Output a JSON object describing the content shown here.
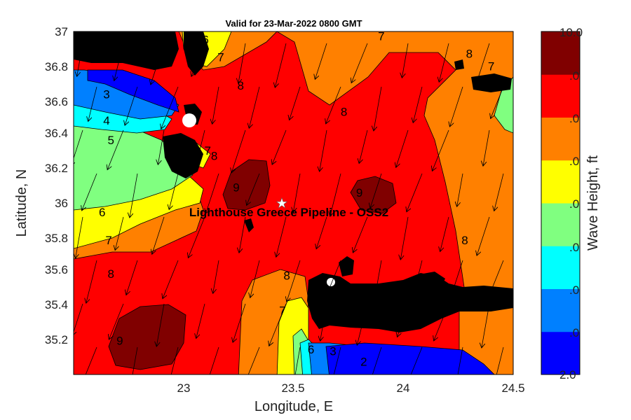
{
  "chart_data": {
    "type": "heatmap",
    "title": "Valid for 23-Mar-2022 0800 GMT",
    "xlabel": "Longitude, E",
    "ylabel": "Latitude, N",
    "xlim": [
      22.5,
      24.5
    ],
    "ylim": [
      35.05,
      37.0
    ],
    "xticks": [
      "23",
      "23.5",
      "24",
      "24.5"
    ],
    "yticks": [
      "37",
      "36.8",
      "36.6",
      "36.4",
      "36.2",
      "36",
      "35.8",
      "35.6",
      "35.4",
      "35.2"
    ],
    "colorbar": {
      "label": "Wave Height, ft",
      "min": 2.0,
      "max": 10.0,
      "tick_labels": [
        ".0",
        ".0",
        ".0",
        ".0",
        ".0",
        ".0",
        ".0"
      ],
      "top_label": "10.0",
      "bottom_label": "2.0",
      "levels": [
        {
          "range": [
            2,
            3
          ],
          "color": "#0000ff"
        },
        {
          "range": [
            3,
            4
          ],
          "color": "#0080ff"
        },
        {
          "range": [
            4,
            5
          ],
          "color": "#00ffff"
        },
        {
          "range": [
            5,
            6
          ],
          "color": "#80ff80"
        },
        {
          "range": [
            6,
            7
          ],
          "color": "#ffff00"
        },
        {
          "range": [
            7,
            8
          ],
          "color": "#ff8000"
        },
        {
          "range": [
            8,
            9
          ],
          "color": "#ff0000"
        },
        {
          "range": [
            9,
            10
          ],
          "color": "#800000"
        }
      ]
    },
    "site": {
      "label": "Lighthouse Greece Pipeline - OSS2",
      "lon": 23.45,
      "lat": 36.0
    },
    "contour_labels": [
      {
        "text": "6",
        "lon": 23.1,
        "lat": 36.93
      },
      {
        "text": "7",
        "lon": 23.17,
        "lat": 36.83
      },
      {
        "text": "8",
        "lon": 23.26,
        "lat": 36.67
      },
      {
        "text": "7",
        "lon": 23.9,
        "lat": 36.95
      },
      {
        "text": "8",
        "lon": 24.3,
        "lat": 36.85
      },
      {
        "text": "7",
        "lon": 24.4,
        "lat": 36.78
      },
      {
        "text": "8",
        "lon": 23.73,
        "lat": 36.52
      },
      {
        "text": "3",
        "lon": 22.65,
        "lat": 36.62
      },
      {
        "text": "4",
        "lon": 22.65,
        "lat": 36.47
      },
      {
        "text": "5",
        "lon": 22.67,
        "lat": 36.36
      },
      {
        "text": "7",
        "lon": 23.11,
        "lat": 36.3
      },
      {
        "text": "8",
        "lon": 23.14,
        "lat": 36.27
      },
      {
        "text": "9",
        "lon": 23.24,
        "lat": 36.09
      },
      {
        "text": "9",
        "lon": 23.8,
        "lat": 36.06
      },
      {
        "text": "6",
        "lon": 22.63,
        "lat": 35.95
      },
      {
        "text": "7",
        "lon": 22.66,
        "lat": 35.79
      },
      {
        "text": "8",
        "lon": 22.67,
        "lat": 35.6
      },
      {
        "text": "8",
        "lon": 23.47,
        "lat": 35.59
      },
      {
        "text": "8",
        "lon": 24.28,
        "lat": 35.79
      },
      {
        "text": "7",
        "lon": 23.45,
        "lat": 35.39
      },
      {
        "text": "9",
        "lon": 22.71,
        "lat": 35.22
      },
      {
        "text": "2",
        "lon": 23.82,
        "lat": 35.1
      },
      {
        "text": "3",
        "lon": 23.68,
        "lat": 35.16
      },
      {
        "text": "6",
        "lon": 23.58,
        "lat": 35.17
      }
    ]
  }
}
